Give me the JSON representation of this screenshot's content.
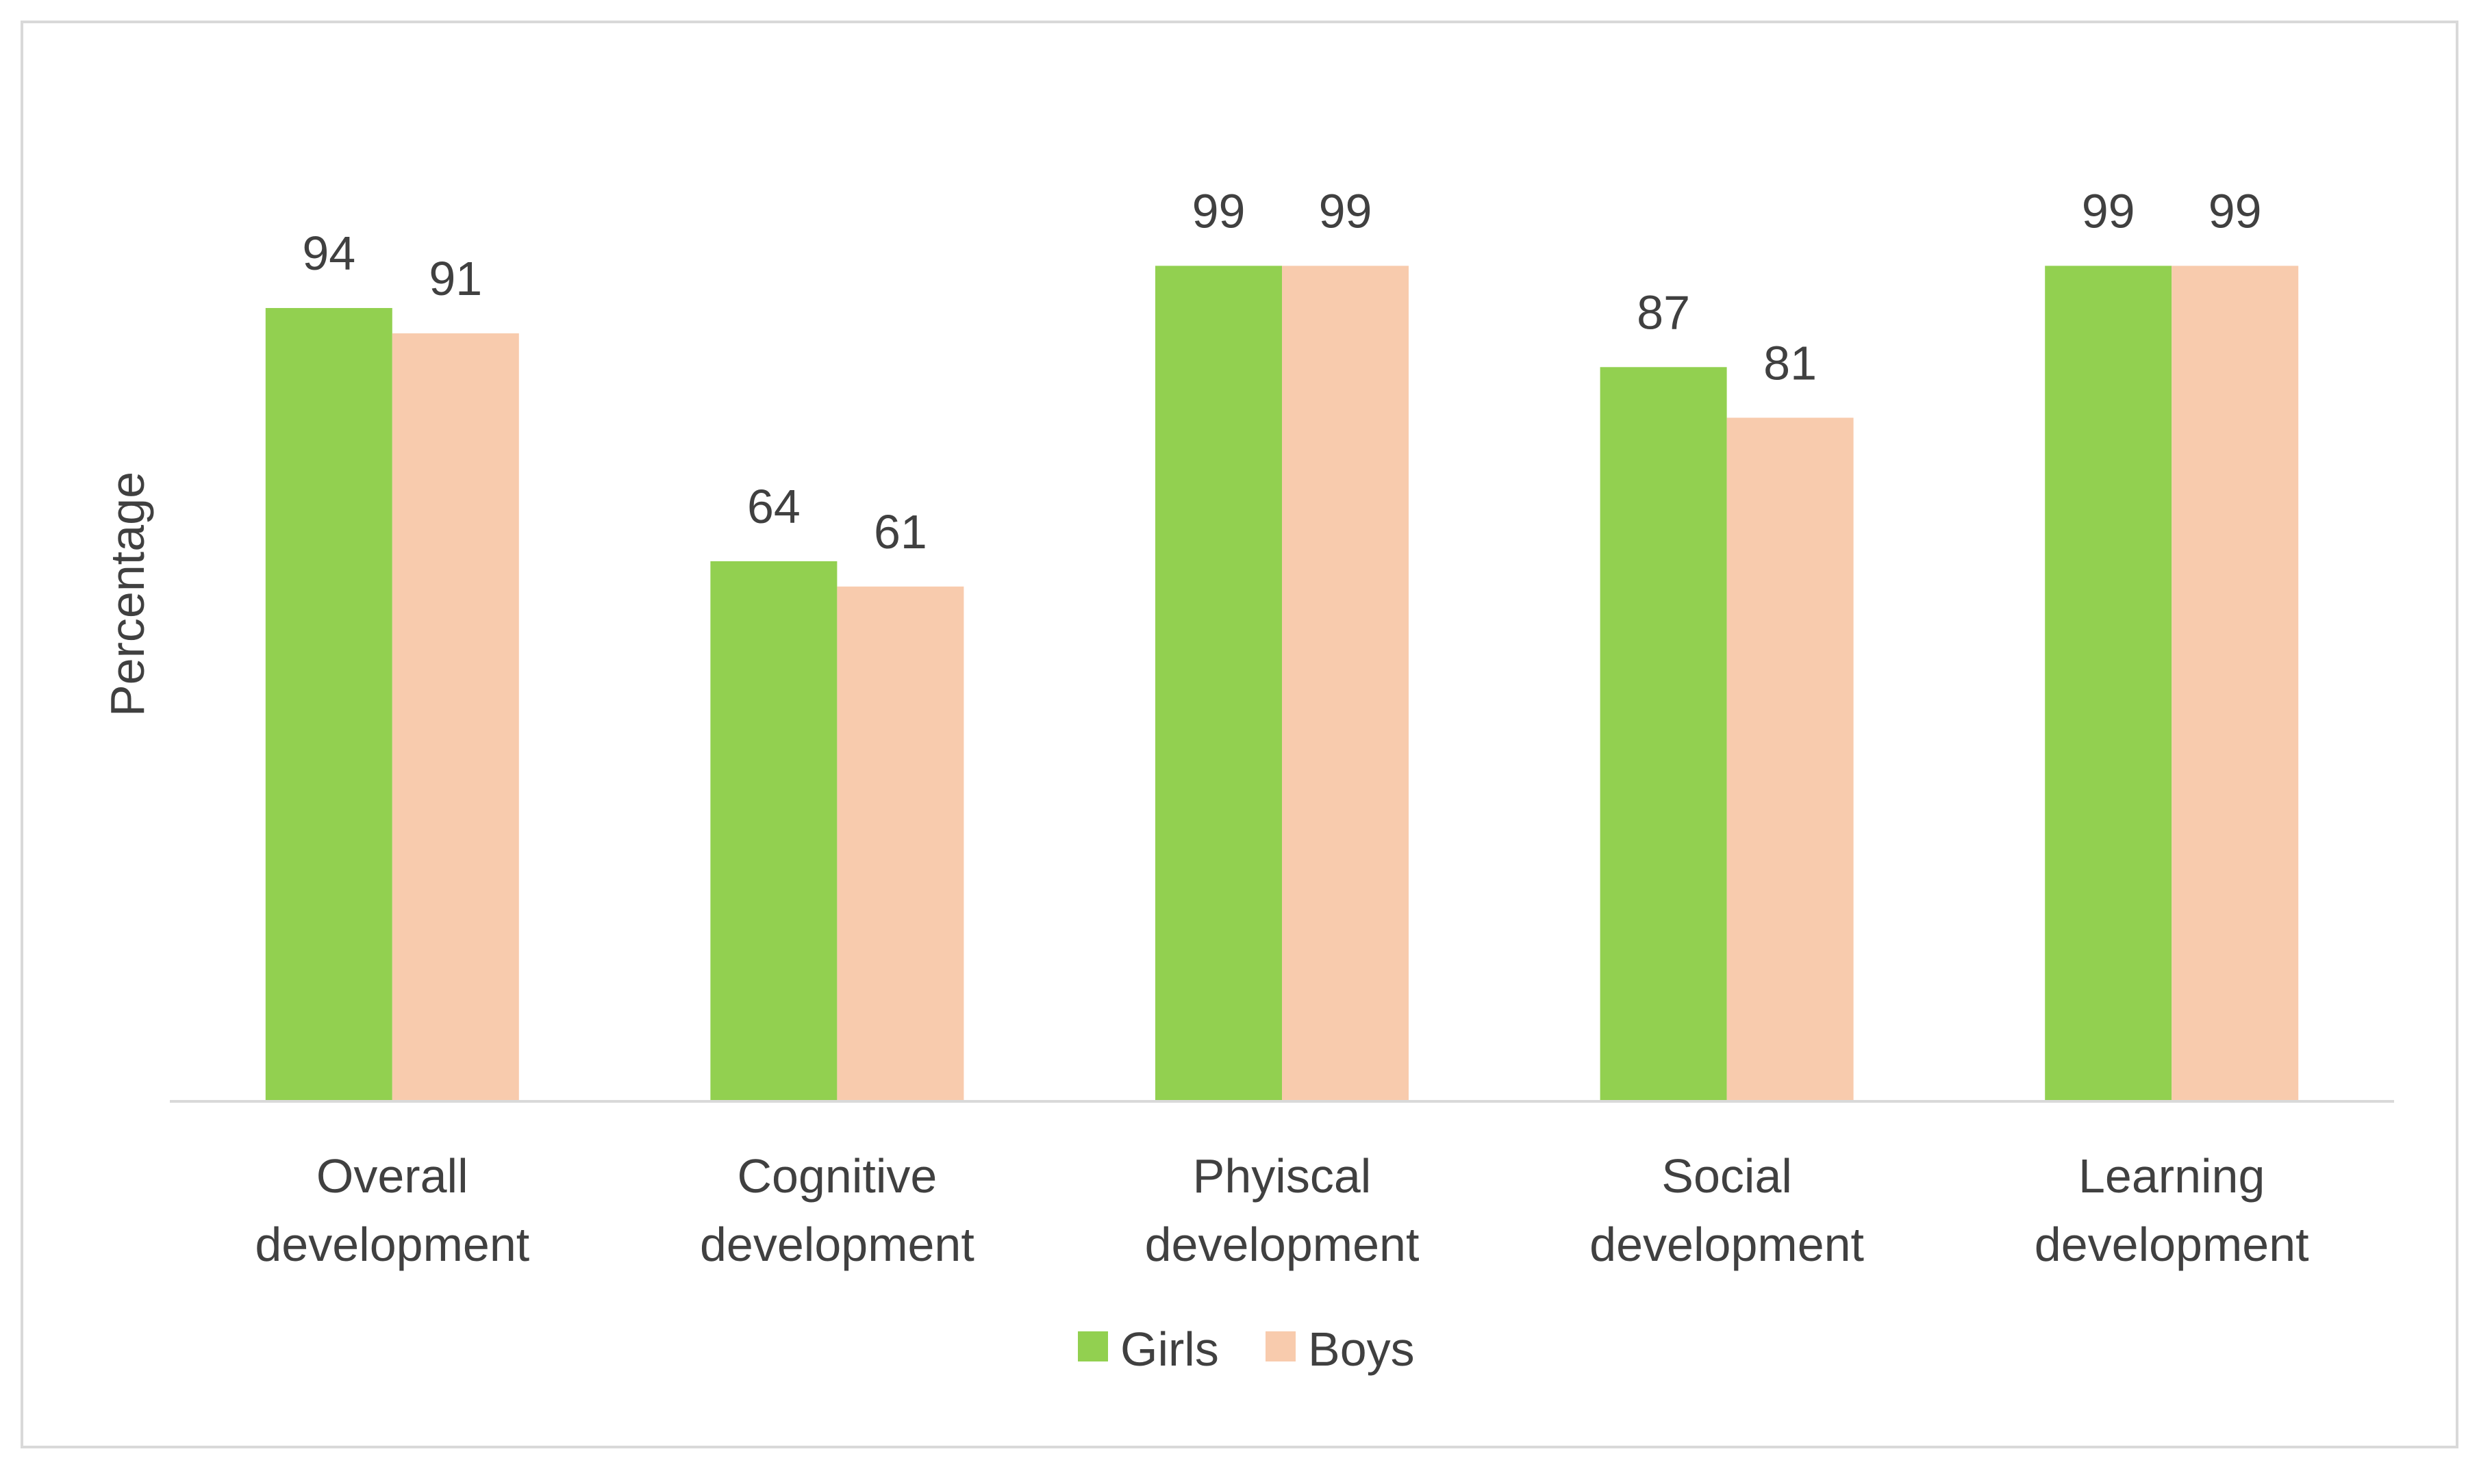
{
  "chart_data": {
    "type": "bar",
    "title": "",
    "xlabel": "",
    "ylabel": "Percentage",
    "ylim": [
      0,
      100
    ],
    "grid": false,
    "legend_position": "bottom",
    "categories": [
      [
        "Overall",
        "development"
      ],
      [
        "Cognitive",
        "development"
      ],
      [
        "Phyiscal",
        "development"
      ],
      [
        "Social",
        "development"
      ],
      [
        "Learning",
        "development"
      ]
    ],
    "series": [
      {
        "name": "Girls",
        "color": "#92d050",
        "values": [
          94,
          64,
          99,
          87,
          99
        ]
      },
      {
        "name": "Boys",
        "color": "#f8cbad",
        "values": [
          91,
          61,
          99,
          81,
          99
        ]
      }
    ]
  }
}
